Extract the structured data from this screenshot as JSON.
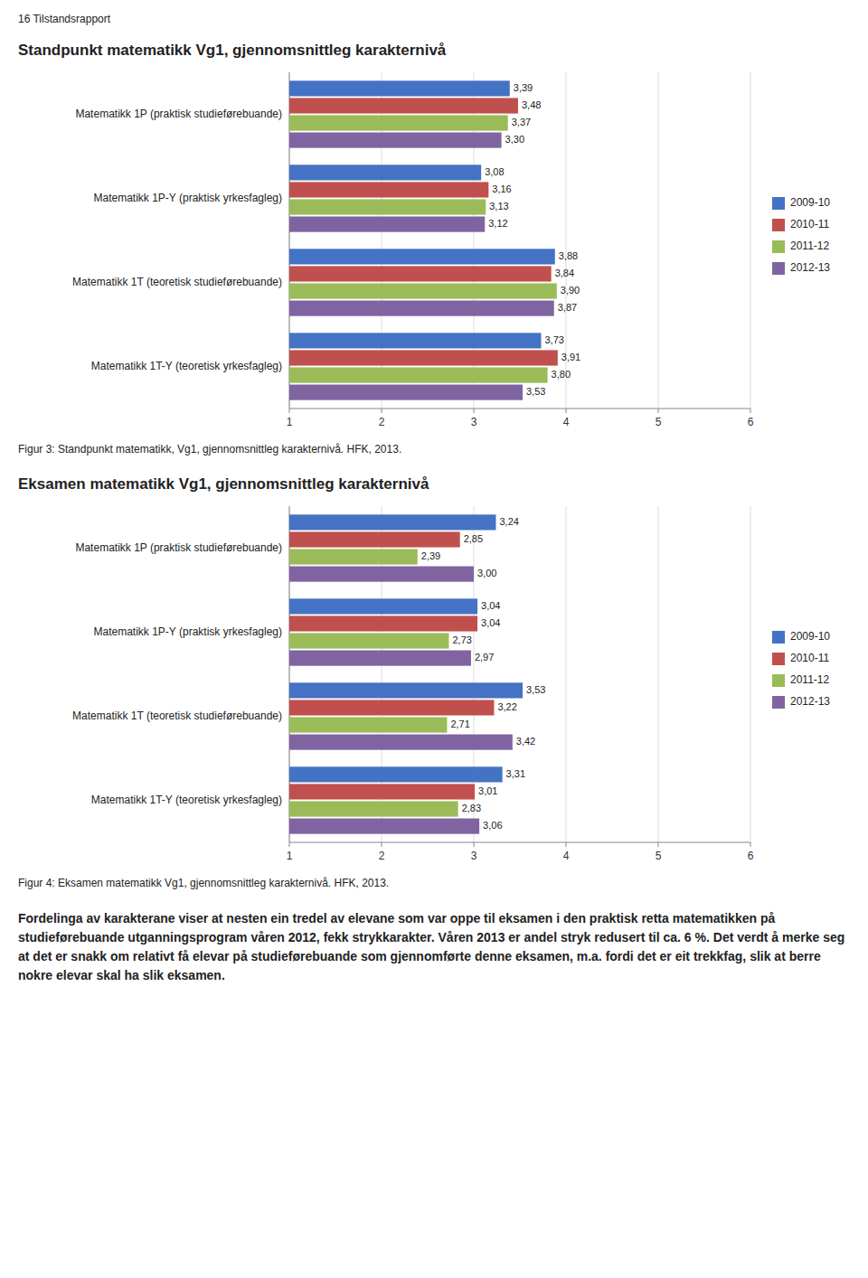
{
  "header": "16 Tilstandsrapport",
  "text": "Fordelinga av karakterane viser at nesten ein tredel av elevane som var oppe til eksamen i den praktisk retta matematikken på studieførebuande utganningsprogram våren 2012, fekk strykkarakter. Våren 2013 er andel stryk redusert til ca. 6 %. Det verdt å merke seg at det er snakk om relativt få elevar på studieførebuande som gjennomførte denne eksamen, m.a. fordi det er eit trekkfag, slik at berre nokre elevar skal ha slik eksamen.",
  "chart_data": [
    {
      "type": "bar",
      "orientation": "horizontal",
      "title": "Standpunkt matematikk Vg1, gjennomsnittleg karakternivå",
      "caption": "Figur 3: Standpunkt matematikk, Vg1, gjennomsnittleg karakternivå. HFK, 2013.",
      "categories": [
        "Matematikk 1P (praktisk studieførebuande)",
        "Matematikk 1P-Y (praktisk yrkesfagleg)",
        "Matematikk 1T (teoretisk studieførebuande)",
        "Matematikk 1T-Y (teoretisk yrkesfagleg)"
      ],
      "series": [
        {
          "name": "2009-10",
          "color": "#4472C4",
          "values": [
            3.39,
            3.08,
            3.88,
            3.73
          ],
          "value_labels": [
            "3,39",
            "3,08",
            "3,88",
            "3,73"
          ]
        },
        {
          "name": "2010-11",
          "color": "#C0504D",
          "values": [
            3.48,
            3.16,
            3.84,
            3.91
          ],
          "value_labels": [
            "3,48",
            "3,16",
            "3,84",
            "3,91"
          ]
        },
        {
          "name": "2011-12",
          "color": "#9BBB59",
          "values": [
            3.37,
            3.13,
            3.9,
            3.8
          ],
          "value_labels": [
            "3,37",
            "3,13",
            "3,90",
            "3,80"
          ]
        },
        {
          "name": "2012-13",
          "color": "#8064A2",
          "values": [
            3.3,
            3.12,
            3.87,
            3.53
          ],
          "value_labels": [
            "3,30",
            "3,12",
            "3,87",
            "3,53"
          ]
        }
      ],
      "xlim": [
        1,
        6
      ],
      "xticks": [
        1,
        2,
        3,
        4,
        5,
        6
      ],
      "grid": true,
      "legend": "right",
      "data_labels": true
    },
    {
      "type": "bar",
      "orientation": "horizontal",
      "title": "Eksamen matematikk Vg1, gjennomsnittleg karakternivå",
      "caption": "Figur 4: Eksamen matematikk Vg1, gjennomsnittleg karakternivå. HFK, 2013.",
      "categories": [
        "Matematikk 1P (praktisk studieførebuande)",
        "Matematikk 1P-Y (praktisk yrkesfagleg)",
        "Matematikk 1T (teoretisk studieførebuande)",
        "Matematikk 1T-Y (teoretisk yrkesfagleg)"
      ],
      "series": [
        {
          "name": "2009-10",
          "color": "#4472C4",
          "values": [
            3.24,
            3.04,
            3.53,
            3.31
          ],
          "value_labels": [
            "3,24",
            "3,04",
            "3,53",
            "3,31"
          ]
        },
        {
          "name": "2010-11",
          "color": "#C0504D",
          "values": [
            2.85,
            3.04,
            3.22,
            3.01
          ],
          "value_labels": [
            "2,85",
            "3,04",
            "3,22",
            "3,01"
          ]
        },
        {
          "name": "2011-12",
          "color": "#9BBB59",
          "values": [
            2.39,
            2.73,
            2.71,
            2.83
          ],
          "value_labels": [
            "2,39",
            "2,73",
            "2,71",
            "2,83"
          ]
        },
        {
          "name": "2012-13",
          "color": "#8064A2",
          "values": [
            3.0,
            2.97,
            3.42,
            3.06
          ],
          "value_labels": [
            "3,00",
            "2,97",
            "3,42",
            "3,06"
          ]
        }
      ],
      "xlim": [
        1,
        6
      ],
      "xticks": [
        1,
        2,
        3,
        4,
        5,
        6
      ],
      "grid": true,
      "legend": "right",
      "data_labels": true
    }
  ]
}
